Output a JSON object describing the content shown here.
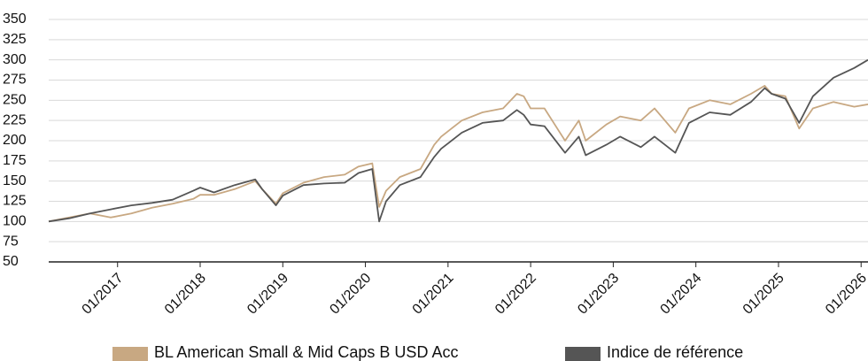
{
  "chart_data": {
    "type": "line",
    "x": [
      "2016-03",
      "2016-06",
      "2016-09",
      "2016-12",
      "2017-03",
      "2017-06",
      "2017-09",
      "2017-12",
      "2018-01",
      "2018-03",
      "2018-06",
      "2018-09",
      "2018-10",
      "2018-12",
      "2019-01",
      "2019-04",
      "2019-07",
      "2019-10",
      "2019-12",
      "2020-02",
      "2020-03",
      "2020-04",
      "2020-06",
      "2020-09",
      "2020-11",
      "2020-12",
      "2021-03",
      "2021-06",
      "2021-09",
      "2021-11",
      "2021-12",
      "2022-01",
      "2022-03",
      "2022-06",
      "2022-08",
      "2022-09",
      "2022-12",
      "2023-02",
      "2023-05",
      "2023-07",
      "2023-10",
      "2023-12",
      "2024-03",
      "2024-06",
      "2024-09",
      "2024-11",
      "2024-12",
      "2025-02",
      "2025-04",
      "2025-06",
      "2025-09",
      "2025-12",
      "2026-02"
    ],
    "series": [
      {
        "name": "BL American Small & Mid Caps B USD Acc",
        "color": "#c8a882",
        "values": [
          100,
          105,
          110,
          105,
          110,
          117,
          122,
          128,
          133,
          133,
          140,
          150,
          140,
          122,
          135,
          148,
          155,
          158,
          168,
          172,
          118,
          138,
          155,
          165,
          195,
          205,
          225,
          235,
          240,
          258,
          255,
          240,
          240,
          200,
          225,
          200,
          220,
          230,
          225,
          240,
          210,
          240,
          250,
          245,
          258,
          268,
          258,
          255,
          215,
          240,
          248,
          242,
          245
        ]
      },
      {
        "name": "Indice de référence",
        "color": "#555555",
        "values": [
          100,
          104,
          110,
          115,
          120,
          123,
          127,
          138,
          142,
          136,
          145,
          152,
          140,
          120,
          132,
          145,
          147,
          148,
          160,
          165,
          100,
          125,
          145,
          155,
          180,
          190,
          210,
          222,
          225,
          238,
          232,
          220,
          218,
          185,
          205,
          182,
          195,
          205,
          192,
          205,
          185,
          222,
          235,
          232,
          248,
          265,
          258,
          252,
          222,
          255,
          278,
          290,
          300
        ]
      }
    ],
    "xlim": [
      "2016-03",
      "2026-02"
    ],
    "xticks": [
      {
        "value": "2017-01",
        "label": "01/2017"
      },
      {
        "value": "2018-01",
        "label": "01/2018"
      },
      {
        "value": "2019-01",
        "label": "01/2019"
      },
      {
        "value": "2020-01",
        "label": "01/2020"
      },
      {
        "value": "2021-01",
        "label": "01/2021"
      },
      {
        "value": "2022-01",
        "label": "01/2022"
      },
      {
        "value": "2023-01",
        "label": "01/2023"
      },
      {
        "value": "2024-01",
        "label": "01/2024"
      },
      {
        "value": "2025-01",
        "label": "01/2025"
      },
      {
        "value": "2026-01",
        "label": "01/2026"
      }
    ],
    "ylim": [
      50,
      350
    ],
    "yticks": [
      50,
      75,
      100,
      125,
      150,
      175,
      200,
      225,
      250,
      275,
      300,
      325,
      350
    ],
    "grid": true,
    "legend": "bottom"
  }
}
